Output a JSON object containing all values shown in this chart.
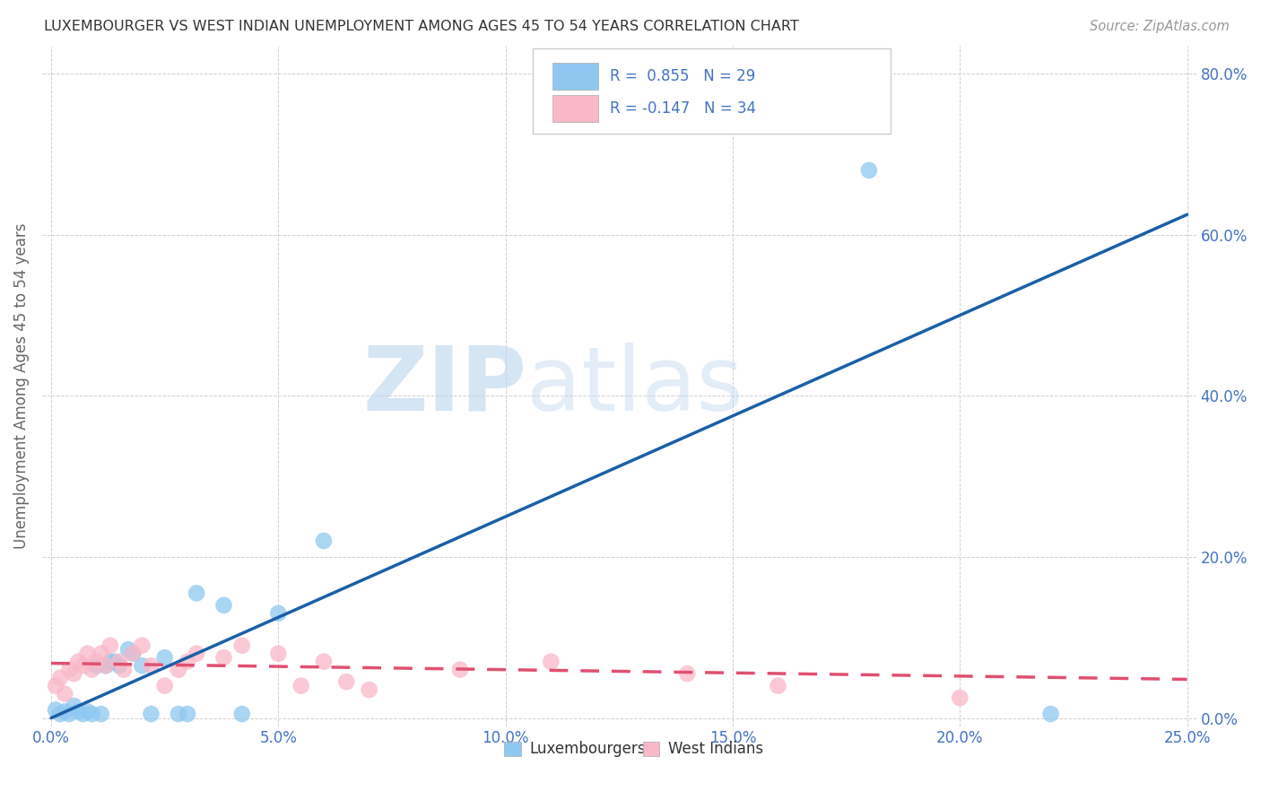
{
  "title": "LUXEMBOURGER VS WEST INDIAN UNEMPLOYMENT AMONG AGES 45 TO 54 YEARS CORRELATION CHART",
  "source": "Source: ZipAtlas.com",
  "ylabel_label": "Unemployment Among Ages 45 to 54 years",
  "legend_label1": "Luxembourgers",
  "legend_label2": "West Indians",
  "R1": 0.855,
  "N1": 29,
  "R2": -0.147,
  "N2": 34,
  "color_blue": "#8ec8f0",
  "color_pink": "#f9b8c8",
  "line_blue": "#1a5fa8",
  "line_pink": "#e05070",
  "watermark_zip": "ZIP",
  "watermark_atlas": "atlas",
  "lux_x": [
    0.001,
    0.002,
    0.003,
    0.004,
    0.005,
    0.006,
    0.007,
    0.008,
    0.009,
    0.01,
    0.011,
    0.012,
    0.013,
    0.014,
    0.015,
    0.017,
    0.018,
    0.02,
    0.022,
    0.025,
    0.028,
    0.03,
    0.032,
    0.038,
    0.042,
    0.05,
    0.06,
    0.18,
    0.22
  ],
  "lux_y": [
    0.01,
    0.005,
    0.008,
    0.005,
    0.015,
    0.008,
    0.005,
    0.008,
    0.005,
    0.065,
    0.005,
    0.065,
    0.07,
    0.07,
    0.065,
    0.085,
    0.08,
    0.065,
    0.005,
    0.075,
    0.005,
    0.005,
    0.155,
    0.14,
    0.005,
    0.13,
    0.22,
    0.68,
    0.005
  ],
  "wi_x": [
    0.001,
    0.002,
    0.003,
    0.004,
    0.005,
    0.006,
    0.007,
    0.008,
    0.009,
    0.01,
    0.011,
    0.012,
    0.013,
    0.015,
    0.016,
    0.018,
    0.02,
    0.022,
    0.025,
    0.028,
    0.03,
    0.032,
    0.038,
    0.042,
    0.05,
    0.055,
    0.06,
    0.065,
    0.07,
    0.09,
    0.11,
    0.14,
    0.16,
    0.2
  ],
  "wi_y": [
    0.04,
    0.05,
    0.03,
    0.06,
    0.055,
    0.07,
    0.065,
    0.08,
    0.06,
    0.07,
    0.08,
    0.065,
    0.09,
    0.07,
    0.06,
    0.08,
    0.09,
    0.065,
    0.04,
    0.06,
    0.07,
    0.08,
    0.075,
    0.09,
    0.08,
    0.04,
    0.07,
    0.045,
    0.035,
    0.06,
    0.07,
    0.055,
    0.04,
    0.025
  ],
  "lux_line_x": [
    0.0,
    0.25
  ],
  "lux_line_y": [
    0.0,
    0.625
  ],
  "wi_line_x": [
    0.0,
    0.25
  ],
  "wi_line_y": [
    0.068,
    0.048
  ],
  "xlim": [
    -0.002,
    0.252
  ],
  "ylim": [
    -0.01,
    0.835
  ],
  "xticks": [
    0.0,
    0.05,
    0.1,
    0.15,
    0.2,
    0.25
  ],
  "yticks": [
    0.0,
    0.2,
    0.4,
    0.6,
    0.8
  ],
  "tick_color": "#4472c4",
  "grid_color": "#d0d0d0",
  "ylabel_color": "#666666",
  "title_color": "#333333",
  "source_color": "#999999"
}
